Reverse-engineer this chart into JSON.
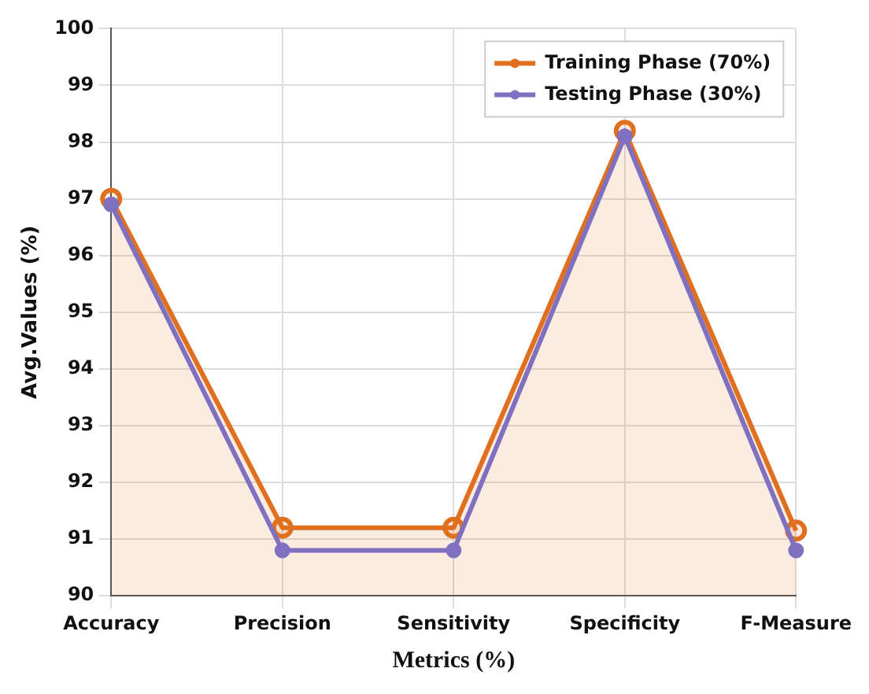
{
  "chart_data": {
    "type": "line",
    "xlabel": "Metrics (%)",
    "ylabel": "Avg.Values (%)",
    "categories": [
      "Accuracy",
      "Precision",
      "Sensitivity",
      "Specificity",
      "F-Measure"
    ],
    "series": [
      {
        "name": "Training Phase (70%)",
        "type": "area",
        "color": "#e0701f",
        "values": [
          97.0,
          91.2,
          91.2,
          98.2,
          91.15
        ]
      },
      {
        "name": "Testing Phase (30%)",
        "color": "#8070c0",
        "values": [
          96.9,
          90.8,
          90.8,
          98.1,
          90.8
        ]
      }
    ],
    "ylim": [
      90,
      100
    ],
    "yticks": [
      90,
      91,
      92,
      93,
      94,
      95,
      96,
      97,
      98,
      99,
      100
    ],
    "grid": true,
    "legend": "top right",
    "marker": "circle",
    "line_style": "solid"
  }
}
